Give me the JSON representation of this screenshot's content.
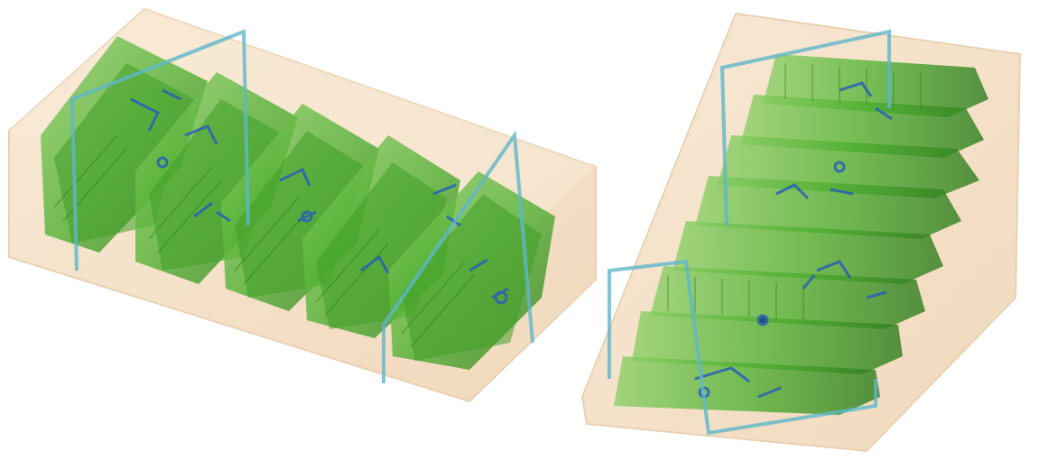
{
  "image": {
    "kind": "dual-view x-ray baggage scan",
    "background": "#ffffff",
    "colors": {
      "container": "#f3dcc0",
      "container_edge": "#e6c9a6",
      "organic": "#4caf2e",
      "organic_dark": "#2f7d1e",
      "organic_light": "#8fd06a",
      "metal": "#2a5fb8",
      "strap": "#5fb7c9"
    },
    "views": [
      {
        "name": "view-a",
        "item_stacks": 5,
        "straps": 2
      },
      {
        "name": "view-b",
        "item_stacks": 8,
        "straps": 2
      }
    ]
  }
}
